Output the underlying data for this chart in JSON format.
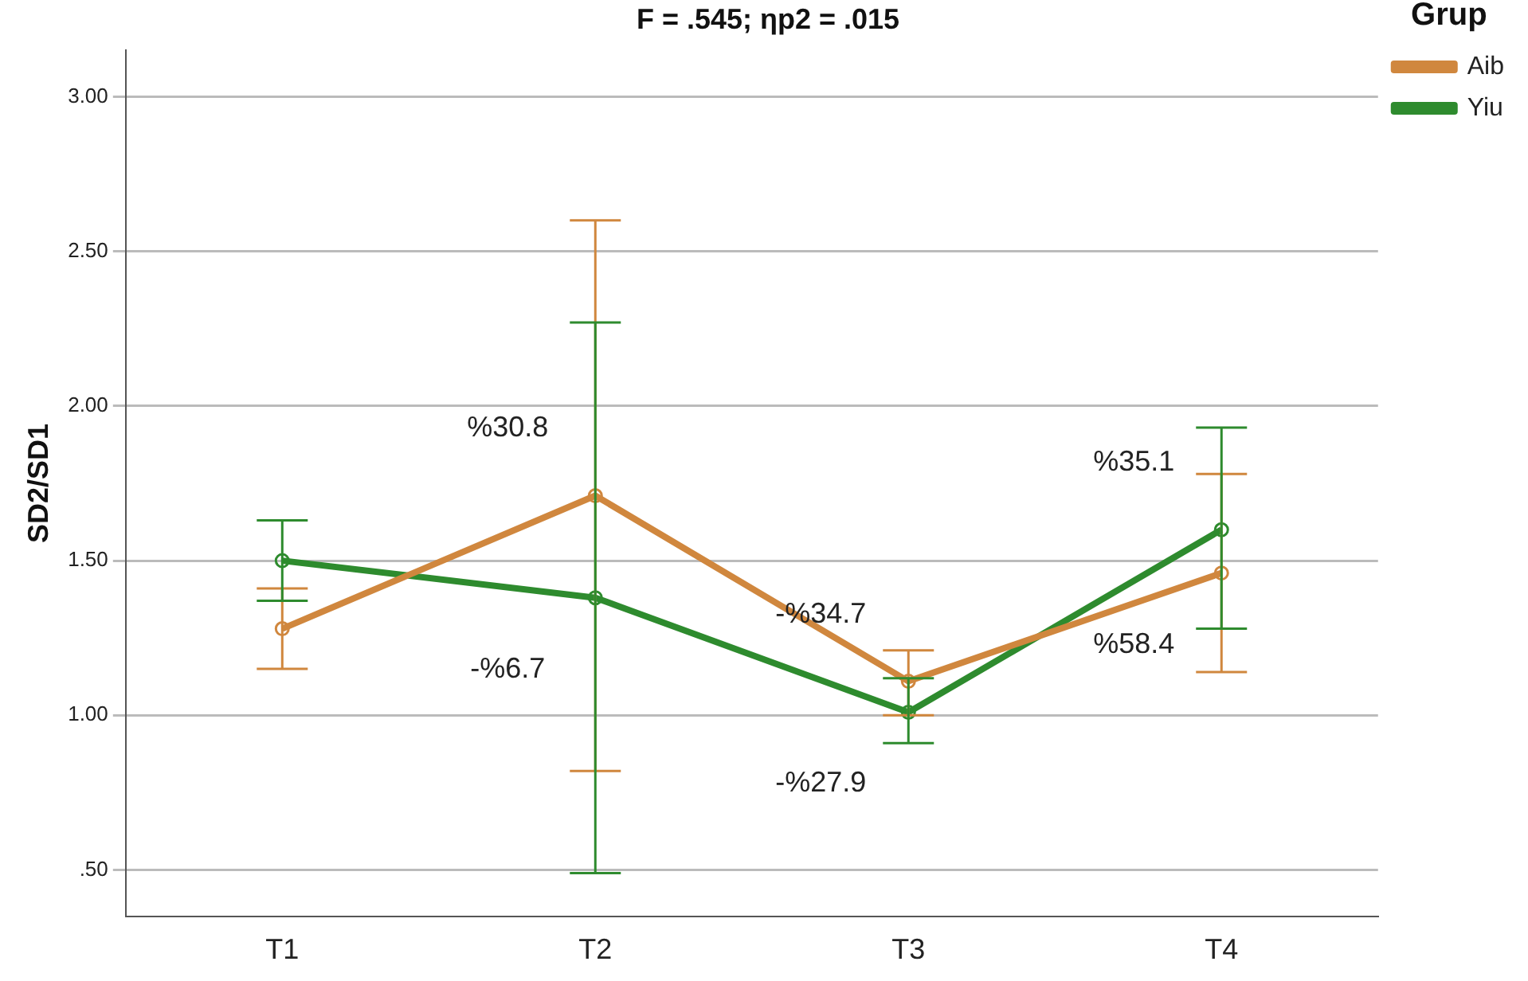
{
  "chart_data": {
    "type": "line",
    "title": "F = .545; ηp2 = .015",
    "ylabel": "SD2/SD1",
    "legend_title": "Grup",
    "categories": [
      "T1",
      "T2",
      "T3",
      "T4"
    ],
    "series": [
      {
        "name": "Aib",
        "color": "#d0873e",
        "values": [
          1.28,
          1.71,
          1.11,
          1.46
        ],
        "errors": [
          [
            1.15,
            1.41
          ],
          [
            0.82,
            2.6
          ],
          [
            1.0,
            1.21
          ],
          [
            1.14,
            1.78
          ]
        ]
      },
      {
        "name": "Yiu",
        "color": "#2e8b2e",
        "values": [
          1.5,
          1.38,
          1.01,
          1.6
        ],
        "errors": [
          [
            1.37,
            1.63
          ],
          [
            0.49,
            2.27
          ],
          [
            0.91,
            1.12
          ],
          [
            1.28,
            1.93
          ]
        ]
      }
    ],
    "annotations": [
      {
        "text": "%30.8",
        "x": "T2",
        "y": 1.71
      },
      {
        "text": "-%6.7",
        "x": "T2",
        "y": 1.38
      },
      {
        "text": "-%34.7",
        "x": "T3",
        "y": 1.11
      },
      {
        "text": "-%27.9",
        "x": "T3",
        "y": 1.01
      },
      {
        "text": "%35.1",
        "x": "T4",
        "y": 1.6
      },
      {
        "text": "%58.4",
        "x": "T4",
        "y": 1.46
      }
    ],
    "ylim": [
      0.35,
      3.15
    ],
    "yticks": [
      {
        "value": 0.5,
        "label": ".50"
      },
      {
        "value": 1,
        "label": "1.00"
      },
      {
        "value": 1.5,
        "label": "1.50"
      },
      {
        "value": 2,
        "label": "2.00"
      },
      {
        "value": 2.5,
        "label": "2.50"
      },
      {
        "value": 3,
        "label": "3.00"
      }
    ],
    "grid": "y",
    "legend": "top right",
    "marker": "circle",
    "line_style": "solid"
  }
}
